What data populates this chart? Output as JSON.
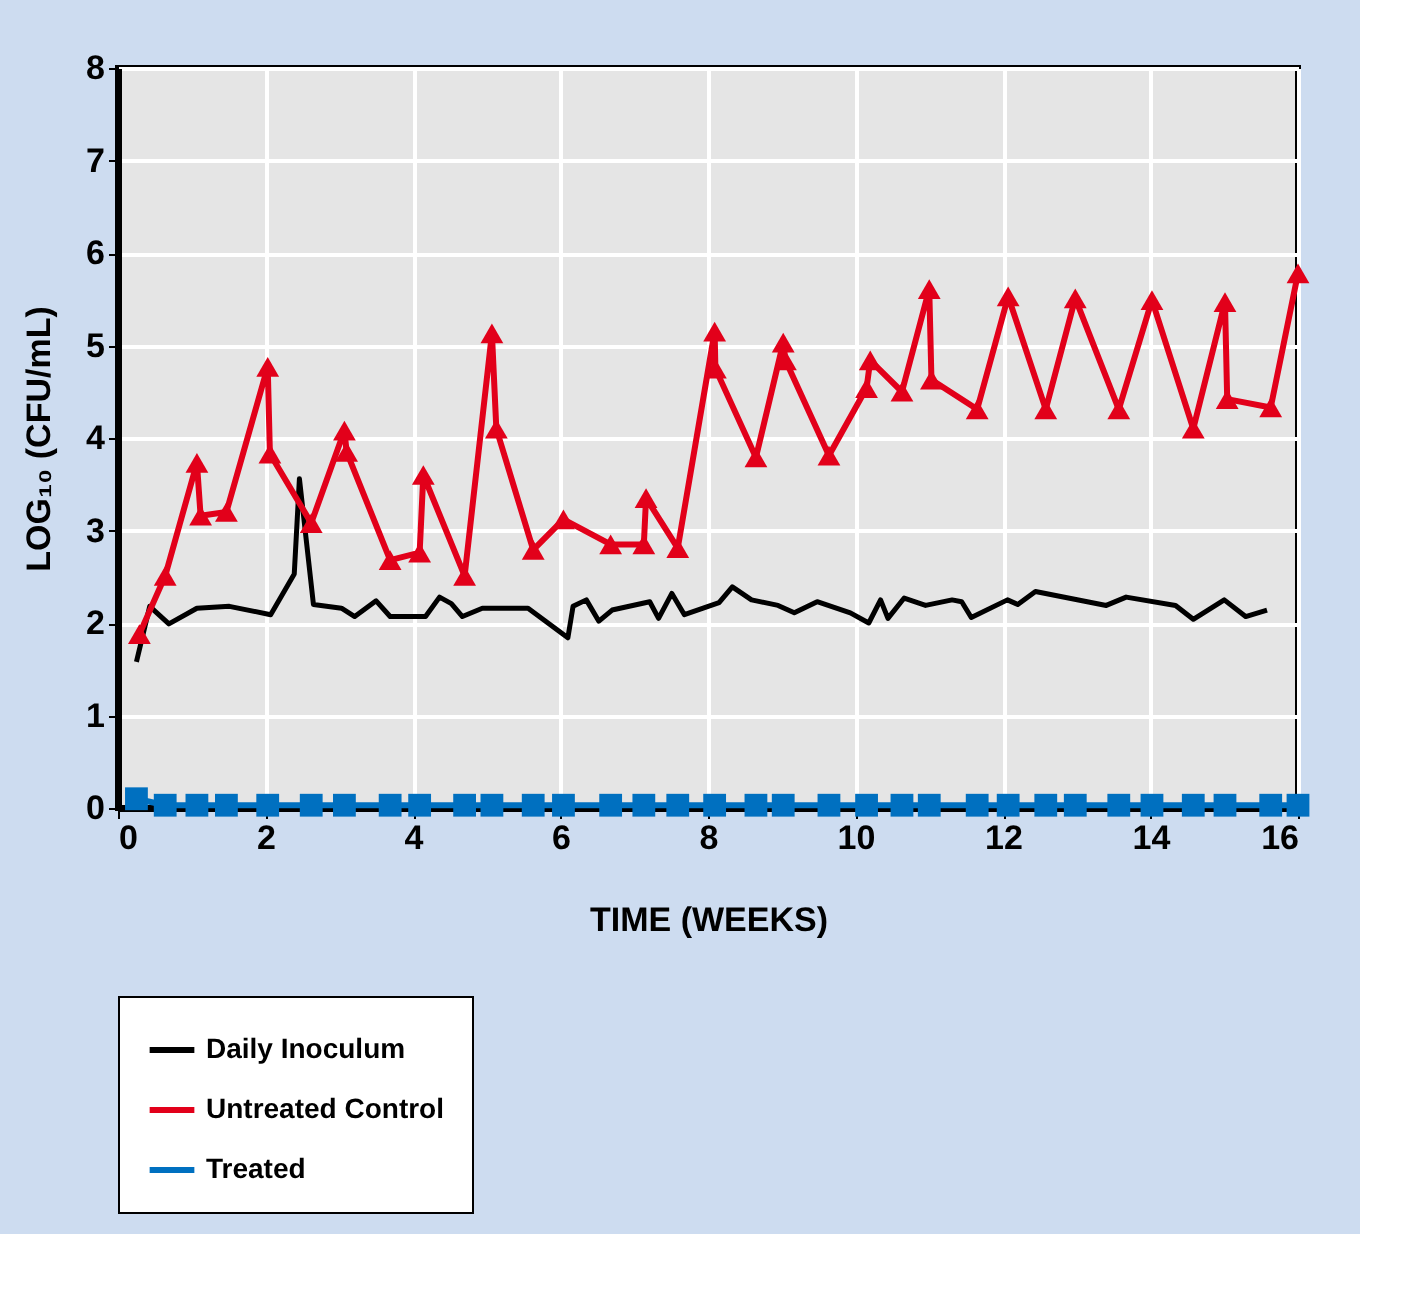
{
  "chart_data": {
    "type": "line",
    "xlabel": "TIME (WEEKS)",
    "ylabel": "LOG₁₀ (CFU/mL)",
    "xlim": [
      0,
      16
    ],
    "xticks": [
      0,
      2,
      4,
      6,
      8,
      10,
      12,
      14,
      16
    ],
    "ylim": [
      0,
      8
    ],
    "yticks": [
      0,
      1,
      2,
      3,
      4,
      5,
      6,
      7,
      8
    ],
    "grid": true,
    "legend": "bottom",
    "line_style": "solid",
    "series": [
      {
        "name": "Daily Inoculum",
        "color": "#000000",
        "marker": "none",
        "x": [
          0.25,
          0.43,
          0.69,
          1.07,
          1.51,
          2.07,
          2.39,
          2.46,
          2.65,
          3.03,
          3.21,
          3.5,
          3.69,
          4.17,
          4.36,
          4.52,
          4.67,
          4.94,
          5.56,
          6.1,
          6.17,
          6.35,
          6.52,
          6.7,
          7.21,
          7.33,
          7.51,
          7.68,
          8.15,
          8.33,
          8.59,
          8.95,
          9.17,
          9.48,
          9.93,
          10.18,
          10.34,
          10.44,
          10.66,
          10.95,
          11.31,
          11.44,
          11.57,
          12.06,
          12.2,
          12.44,
          13.4,
          13.67,
          14.34,
          14.58,
          15.0,
          15.29,
          15.58
        ],
        "values": [
          1.58,
          2.18,
          1.99,
          2.16,
          2.18,
          2.09,
          2.53,
          3.56,
          2.2,
          2.16,
          2.07,
          2.24,
          2.07,
          2.07,
          2.28,
          2.21,
          2.07,
          2.16,
          2.16,
          1.84,
          2.18,
          2.25,
          2.02,
          2.14,
          2.23,
          2.05,
          2.32,
          2.09,
          2.22,
          2.39,
          2.25,
          2.19,
          2.11,
          2.23,
          2.11,
          2.0,
          2.25,
          2.05,
          2.27,
          2.19,
          2.25,
          2.23,
          2.06,
          2.25,
          2.2,
          2.34,
          2.19,
          2.28,
          2.19,
          2.04,
          2.25,
          2.07,
          2.14
        ]
      },
      {
        "name": "Untreated Control",
        "color": "#e2001a",
        "marker": "triangle",
        "x": [
          0.29,
          0.64,
          1.07,
          1.12,
          1.47,
          2.03,
          2.06,
          2.62,
          3.07,
          3.1,
          3.69,
          4.09,
          4.14,
          4.7,
          5.07,
          5.13,
          5.63,
          6.04,
          6.68,
          7.13,
          7.16,
          7.59,
          8.09,
          8.1,
          8.65,
          9.02,
          9.05,
          9.64,
          10.15,
          10.2,
          10.63,
          11.0,
          11.03,
          11.65,
          12.07,
          12.58,
          12.98,
          13.57,
          14.02,
          14.58,
          15.01,
          15.04,
          15.63,
          16.0
        ],
        "values": [
          1.88,
          2.51,
          3.73,
          3.16,
          3.2,
          4.77,
          3.83,
          3.08,
          4.08,
          3.85,
          2.68,
          2.76,
          3.6,
          2.51,
          5.13,
          4.1,
          2.79,
          3.12,
          2.85,
          2.85,
          3.35,
          2.81,
          5.15,
          4.75,
          3.79,
          5.03,
          4.84,
          3.81,
          4.54,
          4.84,
          4.5,
          5.61,
          4.63,
          4.31,
          5.53,
          4.31,
          5.51,
          4.31,
          5.49,
          4.1,
          5.47,
          4.42,
          4.33,
          5.78
        ]
      },
      {
        "name": "Treated",
        "color": "#0070c0",
        "marker": "square",
        "x": [
          0.25,
          0.64,
          1.07,
          1.47,
          2.03,
          2.62,
          3.07,
          3.69,
          4.09,
          4.7,
          5.07,
          5.63,
          6.04,
          6.68,
          7.13,
          7.59,
          8.09,
          8.65,
          9.02,
          9.64,
          10.15,
          10.63,
          11.0,
          11.65,
          12.07,
          12.58,
          12.98,
          13.57,
          14.02,
          14.58,
          15.01,
          15.63,
          16.0
        ],
        "values": [
          0.1,
          0.03,
          0.03,
          0.03,
          0.03,
          0.03,
          0.03,
          0.03,
          0.03,
          0.03,
          0.03,
          0.03,
          0.03,
          0.03,
          0.03,
          0.03,
          0.03,
          0.03,
          0.03,
          0.03,
          0.03,
          0.03,
          0.03,
          0.03,
          0.03,
          0.03,
          0.03,
          0.03,
          0.03,
          0.03,
          0.03,
          0.03,
          0.03
        ]
      }
    ]
  }
}
